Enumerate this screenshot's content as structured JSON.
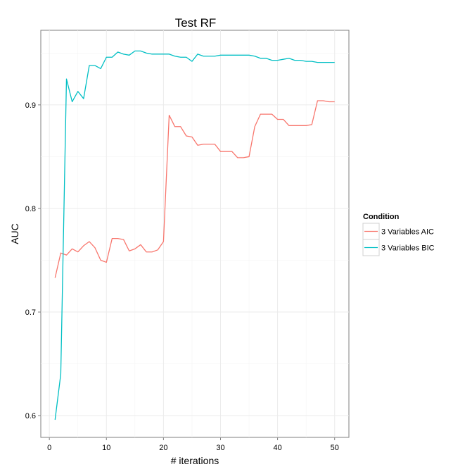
{
  "chart_data": {
    "type": "line",
    "title": "Test RF",
    "xlabel": "# iterations",
    "ylabel": "AUC",
    "xlim": [
      -1.5,
      52.5
    ],
    "ylim": [
      0.579,
      0.972
    ],
    "xticks": [
      0,
      10,
      20,
      30,
      40,
      50
    ],
    "yticks": [
      0.6,
      0.7,
      0.8,
      0.9
    ],
    "ytick_labels": [
      "0.6",
      "0.7",
      "0.8",
      "0.9"
    ],
    "grid": true,
    "legend": {
      "title": "Condition",
      "position": "right"
    },
    "x": [
      1,
      2,
      3,
      4,
      5,
      6,
      7,
      8,
      9,
      10,
      11,
      12,
      13,
      14,
      15,
      16,
      17,
      18,
      19,
      20,
      21,
      22,
      23,
      24,
      25,
      26,
      27,
      28,
      29,
      30,
      31,
      32,
      33,
      34,
      35,
      36,
      37,
      38,
      39,
      40,
      41,
      42,
      43,
      44,
      45,
      46,
      47,
      48,
      49,
      50
    ],
    "series": [
      {
        "name": "3 Variables AIC",
        "color": "#F8766D",
        "values": [
          0.733,
          0.757,
          0.755,
          0.761,
          0.758,
          0.764,
          0.768,
          0.762,
          0.75,
          0.748,
          0.771,
          0.771,
          0.77,
          0.759,
          0.761,
          0.765,
          0.758,
          0.758,
          0.76,
          0.768,
          0.89,
          0.879,
          0.879,
          0.87,
          0.869,
          0.861,
          0.862,
          0.862,
          0.862,
          0.855,
          0.855,
          0.855,
          0.849,
          0.849,
          0.85,
          0.879,
          0.891,
          0.891,
          0.891,
          0.886,
          0.886,
          0.88,
          0.88,
          0.88,
          0.88,
          0.881,
          0.904,
          0.904,
          0.903,
          0.903
        ]
      },
      {
        "name": "3 Variables BIC",
        "color": "#00BFC4",
        "values": [
          0.596,
          0.64,
          0.925,
          0.903,
          0.913,
          0.906,
          0.938,
          0.938,
          0.935,
          0.946,
          0.946,
          0.951,
          0.949,
          0.948,
          0.952,
          0.952,
          0.95,
          0.949,
          0.949,
          0.949,
          0.949,
          0.947,
          0.946,
          0.946,
          0.942,
          0.949,
          0.947,
          0.947,
          0.947,
          0.948,
          0.948,
          0.948,
          0.948,
          0.948,
          0.948,
          0.947,
          0.945,
          0.945,
          0.943,
          0.943,
          0.944,
          0.945,
          0.943,
          0.943,
          0.942,
          0.942,
          0.941,
          0.941,
          0.941,
          0.941
        ]
      }
    ]
  }
}
